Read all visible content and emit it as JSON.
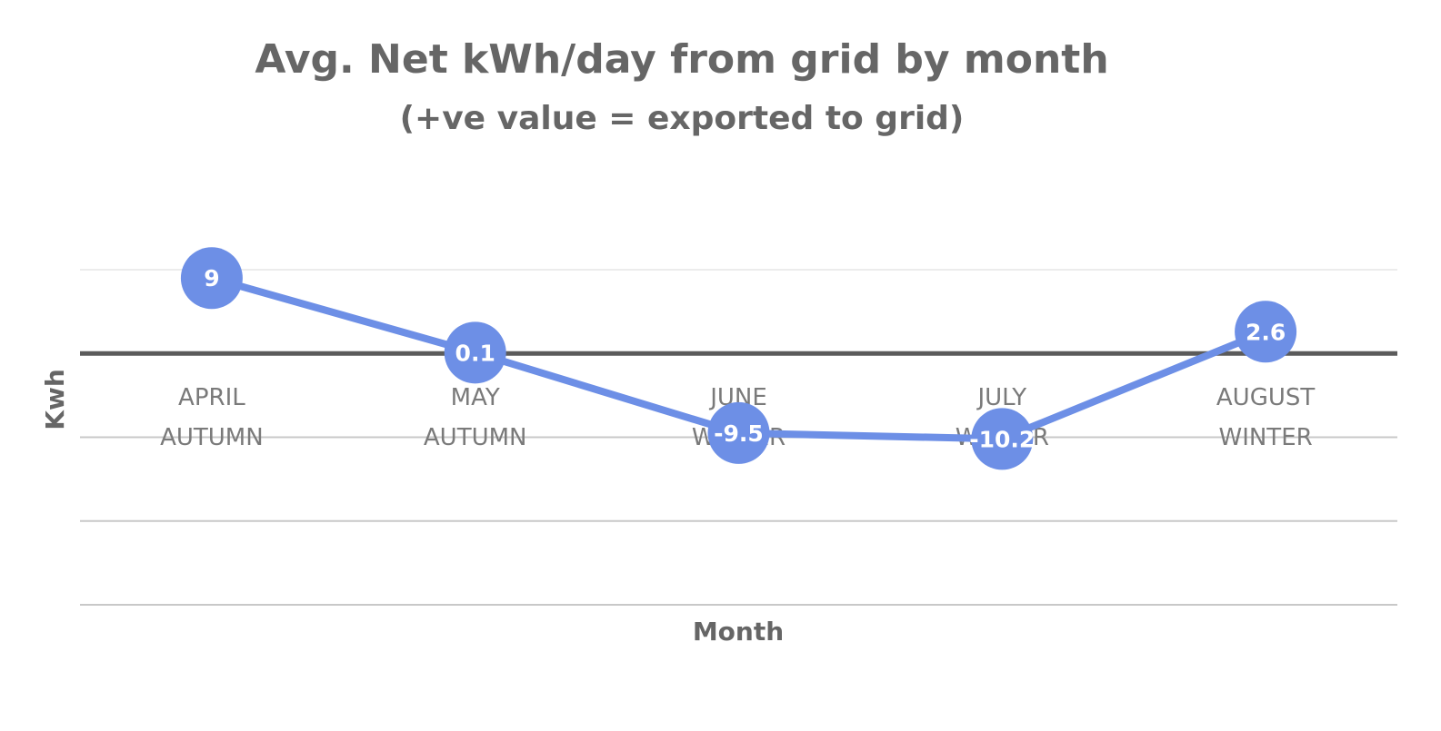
{
  "chart_data": {
    "type": "line",
    "title": "Avg. Net kWh/day from grid by month",
    "subtitle": "(+ve value = exported to grid)",
    "xlabel": "Month",
    "ylabel": "Kwh",
    "categories": [
      [
        "APRIL",
        "AUTUMN"
      ],
      [
        "MAY",
        "AUTUMN"
      ],
      [
        "JUNE",
        "WINTER"
      ],
      [
        "JULY",
        "WINTER"
      ],
      [
        "AUGUST",
        "WINTER"
      ]
    ],
    "series": [
      {
        "values": [
          9,
          0.1,
          -9.5,
          -10.2,
          2.6
        ],
        "color": "#6d8fe6"
      }
    ],
    "data_labels": [
      "9",
      "0.1",
      "-9.5",
      "-10.2",
      "2.6"
    ],
    "ylim": [
      -30,
      10
    ],
    "gridlines": [
      10,
      -10,
      -20,
      -30
    ],
    "zero_line": true,
    "grid": true,
    "legend": "none"
  }
}
